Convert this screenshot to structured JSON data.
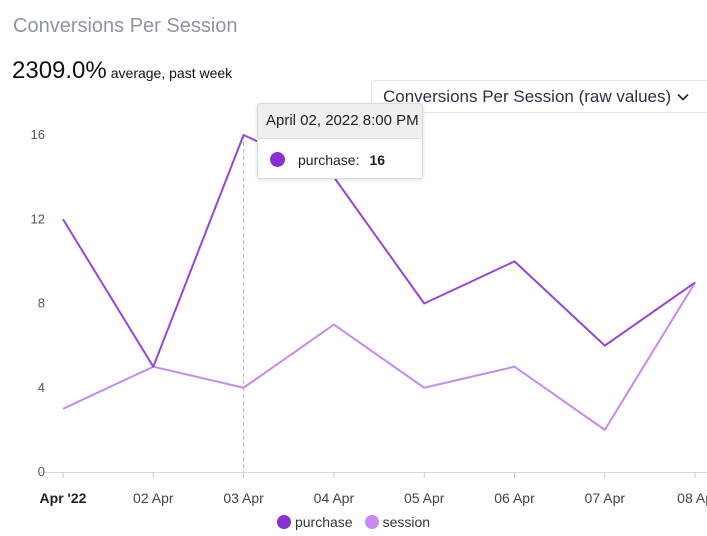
{
  "header": {
    "title": "Conversions Per Session",
    "metric_value": "2309.0%",
    "metric_caption": "average, past week",
    "dropdown_label": "Conversions Per Session (raw values)"
  },
  "tooltip": {
    "date": "April 02, 2022 8:00 PM",
    "series": "purchase:",
    "value": "16",
    "color": "#8a2ed6"
  },
  "legend": [
    {
      "name": "purchase",
      "color": "#8a2ed6"
    },
    {
      "name": "session",
      "color": "#c68af5"
    }
  ],
  "chart_data": {
    "type": "line",
    "title": "Conversions Per Session",
    "categories": [
      "Apr '22",
      "02 Apr",
      "03 Apr",
      "04 Apr",
      "05 Apr",
      "06 Apr",
      "07 Apr",
      "08 Ap"
    ],
    "y_ticks": [
      "0",
      "4",
      "8",
      "12",
      "16"
    ],
    "ylim": [
      0,
      16
    ],
    "grid": false,
    "legend_position": "bottom",
    "highlight_index": 2,
    "series": [
      {
        "name": "purchase",
        "color": "#9645d8",
        "values": [
          12,
          5,
          16,
          14,
          8,
          10,
          6,
          9
        ]
      },
      {
        "name": "session",
        "color": "#c68af5",
        "values": [
          3,
          5,
          4,
          7,
          4,
          5,
          2,
          9
        ]
      }
    ]
  }
}
